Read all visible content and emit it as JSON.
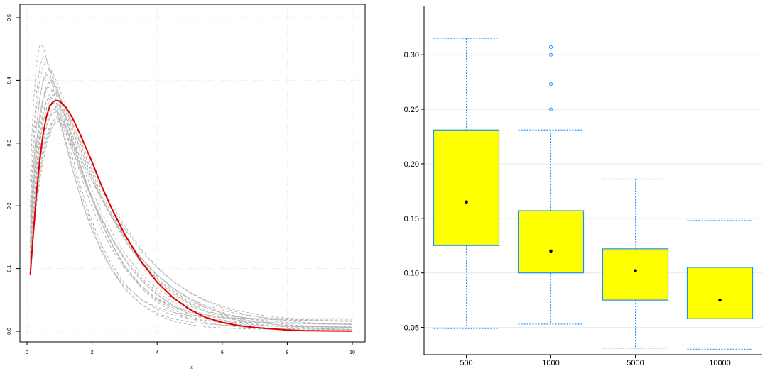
{
  "chart_data": [
    {
      "type": "line",
      "title": "",
      "xlabel": "x",
      "ylabel": "",
      "xlim": [
        0,
        10
      ],
      "ylim": [
        0,
        0.5
      ],
      "x_ticks": [
        "0",
        "2",
        "4",
        "6",
        "8",
        "10"
      ],
      "y_ticks": [
        "0.0",
        "0.1",
        "0.2",
        "0.3",
        "0.4",
        "0.5"
      ],
      "grid": true,
      "series": [
        {
          "style": "solid",
          "color": "#e00000",
          "x": [
            0.1,
            0.2,
            0.3,
            0.4,
            0.5,
            0.6,
            0.7,
            0.8,
            0.9,
            1.0,
            1.2,
            1.4,
            1.6,
            1.8,
            2.0,
            2.3,
            2.6,
            3.0,
            3.5,
            4.0,
            4.5,
            5.0,
            5.5,
            6.0,
            6.5,
            7.0,
            7.5,
            8.0,
            8.5,
            9.0,
            9.5,
            10.0
          ],
          "y": [
            0.09,
            0.16,
            0.224,
            0.276,
            0.316,
            0.343,
            0.359,
            0.366,
            0.368,
            0.367,
            0.357,
            0.34,
            0.318,
            0.294,
            0.27,
            0.231,
            0.196,
            0.155,
            0.112,
            0.078,
            0.053,
            0.035,
            0.022,
            0.014,
            0.009,
            0.006,
            0.004,
            0.002,
            0.001,
            0.0007,
            0.0004,
            0.0002
          ]
        }
      ],
      "gray_curves": {
        "style": "dashed",
        "color": "#b4b4b4",
        "x": [
          0.1,
          0.15,
          0.2,
          0.3,
          0.4,
          0.5,
          0.6,
          0.7,
          0.8,
          0.9,
          1.0,
          1.2,
          1.4,
          1.6,
          1.8,
          2.0,
          2.3,
          2.6,
          3.0,
          3.5,
          4.0,
          4.5,
          5.0,
          5.5,
          6.0,
          6.5,
          7.0,
          7.5,
          8.0,
          8.5,
          9.0,
          9.5,
          10.0
        ],
        "peaks": [
          0.46,
          0.44,
          0.43,
          0.42,
          0.41,
          0.4,
          0.4,
          0.39,
          0.385,
          0.38,
          0.375,
          0.37,
          0.365,
          0.36,
          0.355,
          0.35,
          0.345,
          0.34,
          0.34,
          0.335
        ],
        "modes": [
          0.45,
          0.55,
          0.6,
          0.7,
          0.65,
          0.75,
          0.8,
          0.7,
          0.85,
          0.9,
          0.75,
          0.95,
          0.8,
          1.0,
          0.85,
          0.9,
          1.05,
          0.95,
          1.1,
          1.0
        ],
        "tails": [
          0.02,
          0.018,
          0.016,
          0.015,
          0.014,
          0.013,
          0.012,
          0.011,
          0.01,
          0.009,
          0.008,
          0.007,
          0.006,
          0.005,
          0.004,
          0.003,
          0.003,
          0.002,
          0.002,
          0.001
        ]
      }
    },
    {
      "type": "box",
      "title": "",
      "xlabel": "",
      "ylabel": "",
      "ylim": [
        0.025,
        0.345
      ],
      "y_ticks": [
        "0.05",
        "0.10",
        "0.15",
        "0.20",
        "0.25",
        "0.30"
      ],
      "categories": [
        "500",
        "1000",
        "5000",
        "10000"
      ],
      "box_color": "#ffff00",
      "line_color": "#1e90ff",
      "grid": true,
      "boxes": [
        {
          "whisker_low": 0.049,
          "q1": 0.125,
          "mean": 0.165,
          "q3": 0.231,
          "whisker_high": 0.315,
          "outliers": []
        },
        {
          "whisker_low": 0.053,
          "q1": 0.1,
          "mean": 0.12,
          "q3": 0.157,
          "whisker_high": 0.231,
          "outliers": [
            0.25,
            0.273,
            0.3,
            0.307
          ]
        },
        {
          "whisker_low": 0.031,
          "q1": 0.075,
          "mean": 0.102,
          "q3": 0.122,
          "whisker_high": 0.186,
          "outliers": []
        },
        {
          "whisker_low": 0.03,
          "q1": 0.058,
          "mean": 0.075,
          "q3": 0.105,
          "whisker_high": 0.148,
          "outliers": []
        }
      ]
    }
  ]
}
